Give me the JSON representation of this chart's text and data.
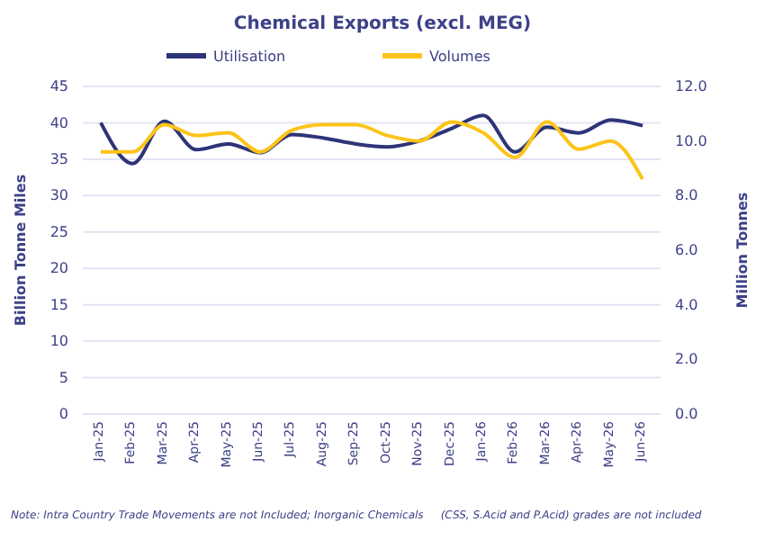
{
  "chart_data": {
    "type": "line",
    "title": "Chemical Exports (excl. MEG)",
    "ylabel": "Billion Tonne Miles",
    "y2label": "Million Tonnes",
    "categories": [
      "Jan-25",
      "Feb-25",
      "Mar-25",
      "Apr-25",
      "May-25",
      "Jun-25",
      "Jul-25",
      "Aug-25",
      "Sep-25",
      "Oct-25",
      "Nov-25",
      "Dec-25",
      "Jan-26",
      "Feb-26",
      "Mar-26",
      "Apr-26",
      "May-26",
      "Jun-26"
    ],
    "series": [
      {
        "name": "Utilisation",
        "color": "#2e3478",
        "values": [
          40,
          34.4,
          40.2,
          36.3,
          37.1,
          35.9,
          38.4,
          37.9,
          37.1,
          36.7,
          37.5,
          39.2,
          41,
          36,
          39.4,
          38.6,
          40.4,
          39.6
        ]
      },
      {
        "name": "Volumes",
        "color": "#fcc419",
        "axis": "y2",
        "values": [
          9.6,
          9.6,
          10.6,
          10.2,
          10.3,
          9.6,
          10.4,
          10.6,
          10.6,
          10.2,
          10.0,
          10.7,
          10.3,
          9.4,
          10.7,
          9.7,
          10.0,
          8.6
        ]
      }
    ],
    "ylim": [
      0,
      45
    ],
    "yticks": [
      0,
      5,
      10,
      15,
      20,
      25,
      30,
      35,
      40,
      45
    ],
    "y2lim": [
      0,
      12
    ],
    "y2ticks": [
      {
        "value": 0,
        "label": "0.0"
      },
      {
        "value": 2,
        "label": "2.0"
      },
      {
        "value": 4,
        "label": "4.0"
      },
      {
        "value": 6,
        "label": "6.0"
      },
      {
        "value": 8,
        "label": "8.0"
      },
      {
        "value": 10,
        "label": "10.0"
      },
      {
        "value": 12,
        "label": "12.0"
      }
    ],
    "grid": "y",
    "legend": "top",
    "marker": "none",
    "line_style": "solid",
    "annotations": [
      "Note: Intra Country Trade Movements are not Included; Inorganic Chemicals     (CSS, S.Acid and P.Acid) grades are not included"
    ]
  }
}
